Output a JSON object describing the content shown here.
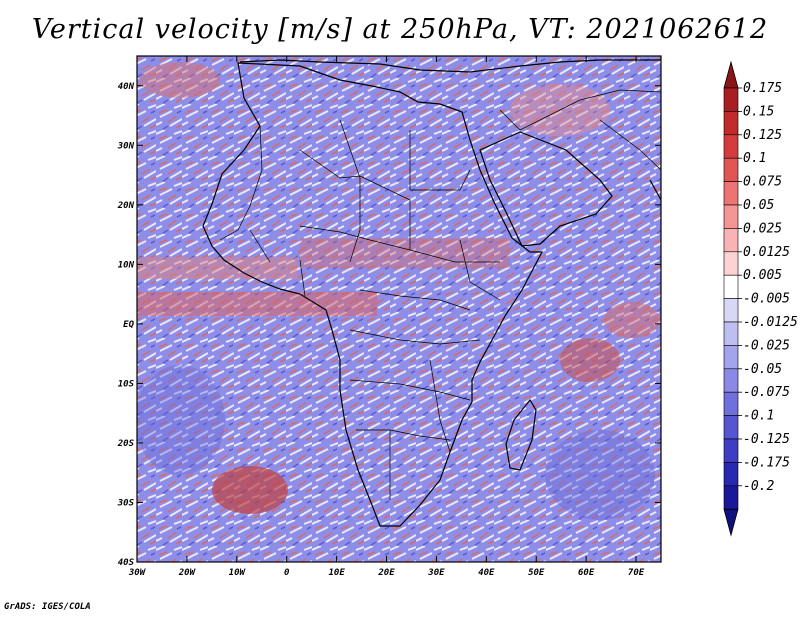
{
  "title": "Vertical velocity [m/s] at 250hPa, VT: 2021062612",
  "credit": "GrADS: IGES/COLA",
  "map": {
    "field": "Vertical velocity",
    "units": "m/s",
    "level": "250hPa",
    "valid_time": "2021062612",
    "lon_range": [
      -30,
      75
    ],
    "lat_range": [
      -40,
      45
    ],
    "lon_labels": [
      "30W",
      "20W",
      "10W",
      "0",
      "10E",
      "20E",
      "30E",
      "40E",
      "50E",
      "60E",
      "70E"
    ],
    "lat_labels": [
      "40N",
      "30N",
      "20N",
      "10N",
      "EQ",
      "10S",
      "20S",
      "30S",
      "40S"
    ]
  },
  "colorbar": {
    "labels": [
      "0.175",
      "0.15",
      "0.125",
      "0.1",
      "0.075",
      "0.05",
      "0.025",
      "0.0125",
      "0.005",
      "-0.005",
      "-0.0125",
      "-0.025",
      "-0.05",
      "-0.075",
      "-0.1",
      "-0.125",
      "-0.175",
      "-0.2"
    ],
    "colors": [
      "#a81e22",
      "#c02a2a",
      "#d33c3c",
      "#e25555",
      "#ec7474",
      "#f49494",
      "#f8b4b4",
      "#fcd3d3",
      "#ffffff",
      "#d8d8f6",
      "#bebef2",
      "#a4a4ec",
      "#8a8ae6",
      "#7070dc",
      "#5656d0",
      "#3e3ec4",
      "#2828b0",
      "#181898"
    ],
    "top_arrow_color": "#8a1418",
    "bottom_arrow_color": "#10107c"
  }
}
